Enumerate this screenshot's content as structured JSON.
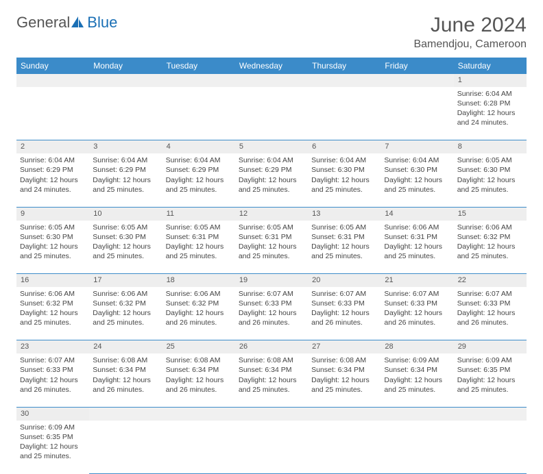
{
  "logo": {
    "general": "General",
    "blue": "Blue"
  },
  "title": {
    "month_year": "June 2024",
    "location": "Bamendjou, Cameroon"
  },
  "colors": {
    "header_bg": "#3b8bc9",
    "header_text": "#ffffff",
    "daynum_bg": "#eeeeee",
    "border": "#3b8bc9",
    "text": "#444444",
    "title_text": "#555555",
    "logo_gray": "#555555",
    "logo_blue": "#1a6fb5"
  },
  "weekdays": [
    "Sunday",
    "Monday",
    "Tuesday",
    "Wednesday",
    "Thursday",
    "Friday",
    "Saturday"
  ],
  "weeks": [
    [
      null,
      null,
      null,
      null,
      null,
      null,
      {
        "n": "1",
        "sr": "6:04 AM",
        "ss": "6:28 PM",
        "dl": "12 hours and 24 minutes."
      }
    ],
    [
      {
        "n": "2",
        "sr": "6:04 AM",
        "ss": "6:29 PM",
        "dl": "12 hours and 24 minutes."
      },
      {
        "n": "3",
        "sr": "6:04 AM",
        "ss": "6:29 PM",
        "dl": "12 hours and 25 minutes."
      },
      {
        "n": "4",
        "sr": "6:04 AM",
        "ss": "6:29 PM",
        "dl": "12 hours and 25 minutes."
      },
      {
        "n": "5",
        "sr": "6:04 AM",
        "ss": "6:29 PM",
        "dl": "12 hours and 25 minutes."
      },
      {
        "n": "6",
        "sr": "6:04 AM",
        "ss": "6:30 PM",
        "dl": "12 hours and 25 minutes."
      },
      {
        "n": "7",
        "sr": "6:04 AM",
        "ss": "6:30 PM",
        "dl": "12 hours and 25 minutes."
      },
      {
        "n": "8",
        "sr": "6:05 AM",
        "ss": "6:30 PM",
        "dl": "12 hours and 25 minutes."
      }
    ],
    [
      {
        "n": "9",
        "sr": "6:05 AM",
        "ss": "6:30 PM",
        "dl": "12 hours and 25 minutes."
      },
      {
        "n": "10",
        "sr": "6:05 AM",
        "ss": "6:30 PM",
        "dl": "12 hours and 25 minutes."
      },
      {
        "n": "11",
        "sr": "6:05 AM",
        "ss": "6:31 PM",
        "dl": "12 hours and 25 minutes."
      },
      {
        "n": "12",
        "sr": "6:05 AM",
        "ss": "6:31 PM",
        "dl": "12 hours and 25 minutes."
      },
      {
        "n": "13",
        "sr": "6:05 AM",
        "ss": "6:31 PM",
        "dl": "12 hours and 25 minutes."
      },
      {
        "n": "14",
        "sr": "6:06 AM",
        "ss": "6:31 PM",
        "dl": "12 hours and 25 minutes."
      },
      {
        "n": "15",
        "sr": "6:06 AM",
        "ss": "6:32 PM",
        "dl": "12 hours and 25 minutes."
      }
    ],
    [
      {
        "n": "16",
        "sr": "6:06 AM",
        "ss": "6:32 PM",
        "dl": "12 hours and 25 minutes."
      },
      {
        "n": "17",
        "sr": "6:06 AM",
        "ss": "6:32 PM",
        "dl": "12 hours and 25 minutes."
      },
      {
        "n": "18",
        "sr": "6:06 AM",
        "ss": "6:32 PM",
        "dl": "12 hours and 26 minutes."
      },
      {
        "n": "19",
        "sr": "6:07 AM",
        "ss": "6:33 PM",
        "dl": "12 hours and 26 minutes."
      },
      {
        "n": "20",
        "sr": "6:07 AM",
        "ss": "6:33 PM",
        "dl": "12 hours and 26 minutes."
      },
      {
        "n": "21",
        "sr": "6:07 AM",
        "ss": "6:33 PM",
        "dl": "12 hours and 26 minutes."
      },
      {
        "n": "22",
        "sr": "6:07 AM",
        "ss": "6:33 PM",
        "dl": "12 hours and 26 minutes."
      }
    ],
    [
      {
        "n": "23",
        "sr": "6:07 AM",
        "ss": "6:33 PM",
        "dl": "12 hours and 26 minutes."
      },
      {
        "n": "24",
        "sr": "6:08 AM",
        "ss": "6:34 PM",
        "dl": "12 hours and 26 minutes."
      },
      {
        "n": "25",
        "sr": "6:08 AM",
        "ss": "6:34 PM",
        "dl": "12 hours and 26 minutes."
      },
      {
        "n": "26",
        "sr": "6:08 AM",
        "ss": "6:34 PM",
        "dl": "12 hours and 25 minutes."
      },
      {
        "n": "27",
        "sr": "6:08 AM",
        "ss": "6:34 PM",
        "dl": "12 hours and 25 minutes."
      },
      {
        "n": "28",
        "sr": "6:09 AM",
        "ss": "6:34 PM",
        "dl": "12 hours and 25 minutes."
      },
      {
        "n": "29",
        "sr": "6:09 AM",
        "ss": "6:35 PM",
        "dl": "12 hours and 25 minutes."
      }
    ],
    [
      {
        "n": "30",
        "sr": "6:09 AM",
        "ss": "6:35 PM",
        "dl": "12 hours and 25 minutes."
      },
      null,
      null,
      null,
      null,
      null,
      null
    ]
  ],
  "labels": {
    "sunrise": "Sunrise:",
    "sunset": "Sunset:",
    "daylight": "Daylight:"
  }
}
